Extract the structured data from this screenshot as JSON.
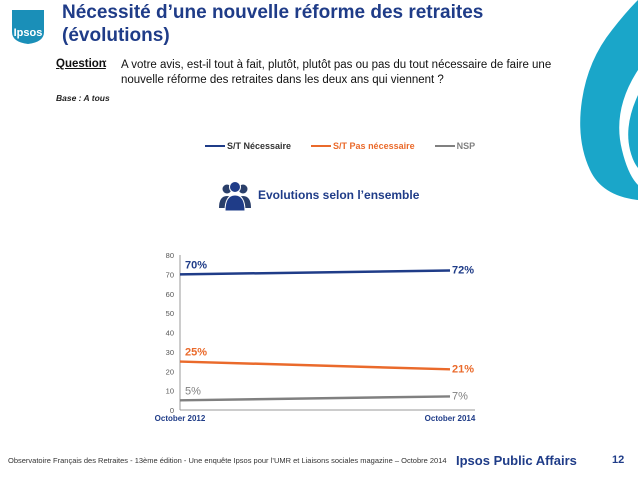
{
  "header": {
    "logo_text": "Ipsos",
    "title_line1": "Nécessité d’une nouvelle réforme des retraites",
    "title_line2": "(évolutions)"
  },
  "question": {
    "label": "Question",
    "colon": ":",
    "text": "A votre avis, est-il tout à fait, plutôt, plutôt pas ou pas du tout nécessaire de faire une nouvelle réforme des retraites dans les deux ans qui viennent ?"
  },
  "base": "Base : A tous",
  "subtitle": "Evolutions selon l’ensemble",
  "colors": {
    "blue": "#1f3c88",
    "orange": "#ea6a2b",
    "gray": "#808080",
    "teal": "#1aa6c9"
  },
  "chart_data": {
    "type": "line",
    "x": [
      "October 2012",
      "October 2014"
    ],
    "ylim": [
      0,
      80
    ],
    "yticks": [
      "0",
      "10",
      "20",
      "30",
      "40",
      "50",
      "60",
      "70",
      "80"
    ],
    "grid": false,
    "legend_position": "top",
    "series": [
      {
        "name": "S/T Nécessaire",
        "values": [
          70,
          72
        ],
        "labels": [
          "70%",
          "72%"
        ],
        "color": "#1f3c88"
      },
      {
        "name": "S/T Pas nécessaire",
        "values": [
          25,
          21
        ],
        "labels": [
          "25%",
          "21%"
        ],
        "color": "#ea6a2b"
      },
      {
        "name": "NSP",
        "values": [
          5,
          7
        ],
        "labels": [
          "5%",
          "7%"
        ],
        "color": "#808080"
      }
    ]
  },
  "footer": {
    "source": "Observatoire Français des Retraites - 13ème édition - Une enquête Ipsos pour  l’UMR et Liaisons sociales magazine – Octobre 2014",
    "brand": "Ipsos Public Affairs",
    "page": "12"
  }
}
